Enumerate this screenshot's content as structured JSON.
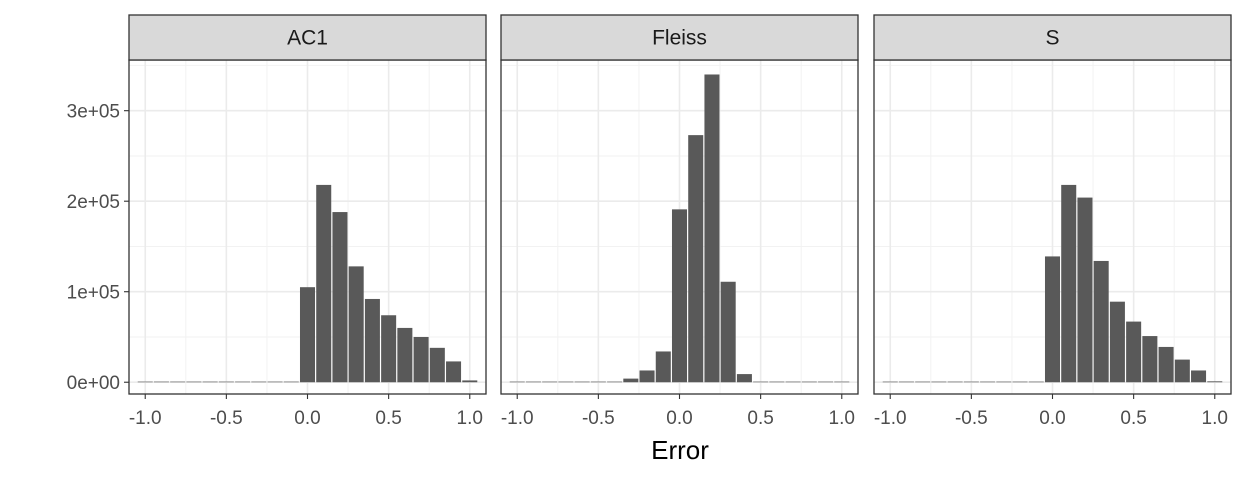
{
  "chart_data": {
    "type": "bar",
    "xlabel": "Error",
    "ylabel": "",
    "xlim": [
      -1.1,
      1.1
    ],
    "ylim": [
      -13000,
      356000
    ],
    "x_ticks": [
      -1.0,
      -0.5,
      0.0,
      0.5,
      1.0
    ],
    "x_tick_labels": [
      "-1.0",
      "-0.5",
      "0.0",
      "0.5",
      "1.0"
    ],
    "y_ticks": [
      0,
      100000,
      200000,
      300000
    ],
    "y_tick_labels": [
      "0e+00",
      "1e+05",
      "2e+05",
      "3e+05"
    ],
    "bin_width": 0.1,
    "grid": true,
    "bar_color": "#595959",
    "strip_fill": "#d9d9d9",
    "panels": [
      {
        "label": "AC1",
        "bins": [
          {
            "x": -1.0,
            "count": 600
          },
          {
            "x": -0.9,
            "count": 300
          },
          {
            "x": -0.8,
            "count": 200
          },
          {
            "x": -0.7,
            "count": 200
          },
          {
            "x": -0.6,
            "count": 200
          },
          {
            "x": -0.5,
            "count": 200
          },
          {
            "x": -0.4,
            "count": 200
          },
          {
            "x": -0.3,
            "count": 200
          },
          {
            "x": -0.2,
            "count": 200
          },
          {
            "x": -0.1,
            "count": 200
          },
          {
            "x": 0.0,
            "count": 105000
          },
          {
            "x": 0.1,
            "count": 218000
          },
          {
            "x": 0.2,
            "count": 188000
          },
          {
            "x": 0.3,
            "count": 128000
          },
          {
            "x": 0.4,
            "count": 92000
          },
          {
            "x": 0.5,
            "count": 74000
          },
          {
            "x": 0.6,
            "count": 60000
          },
          {
            "x": 0.7,
            "count": 50000
          },
          {
            "x": 0.8,
            "count": 38000
          },
          {
            "x": 0.9,
            "count": 23000
          },
          {
            "x": 1.0,
            "count": 2000
          }
        ]
      },
      {
        "label": "Fleiss",
        "bins": [
          {
            "x": -1.0,
            "count": 600
          },
          {
            "x": -0.9,
            "count": 300
          },
          {
            "x": -0.8,
            "count": 200
          },
          {
            "x": -0.7,
            "count": 200
          },
          {
            "x": -0.6,
            "count": 200
          },
          {
            "x": -0.5,
            "count": 200
          },
          {
            "x": -0.4,
            "count": 300
          },
          {
            "x": -0.3,
            "count": 4000
          },
          {
            "x": -0.2,
            "count": 13000
          },
          {
            "x": -0.1,
            "count": 34000
          },
          {
            "x": 0.0,
            "count": 191000
          },
          {
            "x": 0.1,
            "count": 273000
          },
          {
            "x": 0.2,
            "count": 340000
          },
          {
            "x": 0.3,
            "count": 111000
          },
          {
            "x": 0.4,
            "count": 9000
          },
          {
            "x": 0.5,
            "count": 300
          },
          {
            "x": 0.6,
            "count": 200
          },
          {
            "x": 0.7,
            "count": 200
          },
          {
            "x": 0.8,
            "count": 200
          },
          {
            "x": 0.9,
            "count": 200
          },
          {
            "x": 1.0,
            "count": 400
          }
        ]
      },
      {
        "label": "S",
        "bins": [
          {
            "x": -1.0,
            "count": 600
          },
          {
            "x": -0.9,
            "count": 300
          },
          {
            "x": -0.8,
            "count": 200
          },
          {
            "x": -0.7,
            "count": 200
          },
          {
            "x": -0.6,
            "count": 200
          },
          {
            "x": -0.5,
            "count": 200
          },
          {
            "x": -0.4,
            "count": 200
          },
          {
            "x": -0.3,
            "count": 200
          },
          {
            "x": -0.2,
            "count": 200
          },
          {
            "x": -0.1,
            "count": 200
          },
          {
            "x": 0.0,
            "count": 139000
          },
          {
            "x": 0.1,
            "count": 218000
          },
          {
            "x": 0.2,
            "count": 204000
          },
          {
            "x": 0.3,
            "count": 134000
          },
          {
            "x": 0.4,
            "count": 89000
          },
          {
            "x": 0.5,
            "count": 67000
          },
          {
            "x": 0.6,
            "count": 51000
          },
          {
            "x": 0.7,
            "count": 39000
          },
          {
            "x": 0.8,
            "count": 25000
          },
          {
            "x": 0.9,
            "count": 13000
          },
          {
            "x": 1.0,
            "count": 1000
          }
        ]
      }
    ]
  }
}
